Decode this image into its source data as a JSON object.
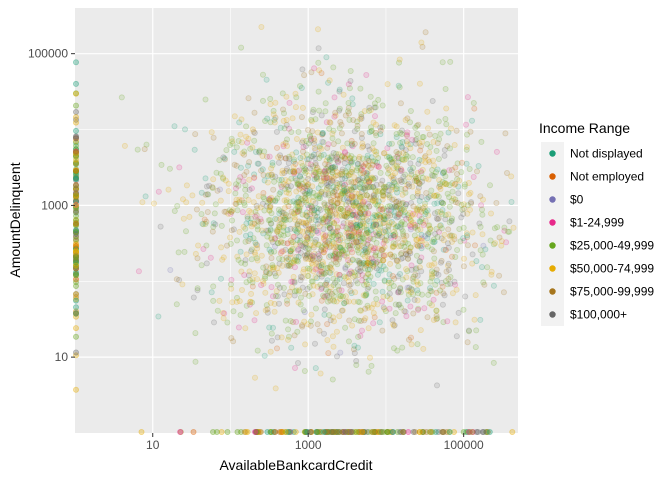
{
  "chart_data": {
    "type": "scatter",
    "title": "",
    "xlabel": "AvailableBankcardCredit",
    "ylabel": "AmountDelinquent",
    "x_scale": "log10",
    "y_scale": "log10",
    "xlim": [
      1,
      500000
    ],
    "ylim": [
      1,
      400000
    ],
    "x_ticks": [
      10,
      1000,
      100000
    ],
    "x_tick_labels": [
      "10",
      "1000",
      "100000"
    ],
    "y_ticks": [
      10,
      1000,
      100000
    ],
    "y_tick_labels": [
      "10",
      "1000",
      "100000"
    ],
    "grid": true,
    "point_alpha": 0.15,
    "legend": {
      "title": "Income Range",
      "placement": "right"
    },
    "series": [
      {
        "name": "Not displayed",
        "color": "#1B9E77",
        "weight": 0.1
      },
      {
        "name": "Not employed",
        "color": "#D95F02",
        "weight": 0.03
      },
      {
        "name": "$0",
        "color": "#7570B3",
        "weight": 0.01
      },
      {
        "name": "$1-24,999",
        "color": "#E7298A",
        "weight": 0.07
      },
      {
        "name": "$25,000-49,999",
        "color": "#66A61E",
        "weight": 0.3
      },
      {
        "name": "$50,000-74,999",
        "color": "#E6AB02",
        "weight": 0.26
      },
      {
        "name": "$75,000-99,999",
        "color": "#A6761D",
        "weight": 0.12
      },
      {
        "name": "$100,000+",
        "color": "#666666",
        "weight": 0.11
      }
    ],
    "cloud_center": {
      "x": 3000,
      "y": 700
    },
    "cloud_spread_log10": {
      "x": 0.85,
      "y": 0.75
    }
  }
}
